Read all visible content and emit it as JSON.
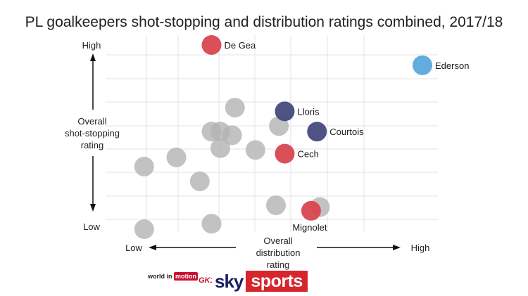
{
  "title": "PL goalkeepers shot-stopping and distribution ratings combined, 2017/18",
  "colors": {
    "grey": "#b3b3b3",
    "red": "#d9474f",
    "navy": "#464a7c",
    "light_blue": "#5ba8dc",
    "grid": "#e3e3e3"
  },
  "axes": {
    "y_high": "High",
    "y_low": "Low",
    "y_label_lines": [
      "Overall",
      "shot-stopping",
      "rating"
    ],
    "x_low": "Low",
    "x_high": "High",
    "x_label_lines": [
      "Overall",
      "distribution",
      "rating"
    ]
  },
  "chart_data": {
    "type": "scatter",
    "title": "PL goalkeepers shot-stopping and distribution ratings combined, 2017/18",
    "xlabel": "Overall distribution rating",
    "ylabel": "Overall shot-stopping rating",
    "xlim": [
      0,
      10
    ],
    "ylim": [
      0,
      10
    ],
    "grid": true,
    "points": [
      {
        "label": "De Gea",
        "x": 2.8,
        "y": 10.0,
        "color": "red"
      },
      {
        "label": "Ederson",
        "x": 10.0,
        "y": 8.9,
        "color": "light_blue"
      },
      {
        "label": "Lloris",
        "x": 5.3,
        "y": 6.4,
        "color": "navy"
      },
      {
        "label": "Courtois",
        "x": 6.4,
        "y": 5.3,
        "color": "navy"
      },
      {
        "label": "Cech",
        "x": 5.3,
        "y": 4.1,
        "color": "red"
      },
      {
        "label": "Mignolet",
        "x": 6.2,
        "y": 1.0,
        "color": "red"
      },
      {
        "label": "",
        "x": 3.6,
        "y": 6.6,
        "color": "grey"
      },
      {
        "label": "",
        "x": 5.1,
        "y": 5.6,
        "color": "grey"
      },
      {
        "label": "",
        "x": 2.8,
        "y": 5.3,
        "color": "grey"
      },
      {
        "label": "",
        "x": 3.1,
        "y": 5.3,
        "color": "grey"
      },
      {
        "label": "",
        "x": 3.5,
        "y": 5.1,
        "color": "grey"
      },
      {
        "label": "",
        "x": 3.1,
        "y": 4.4,
        "color": "grey"
      },
      {
        "label": "",
        "x": 4.3,
        "y": 4.3,
        "color": "grey"
      },
      {
        "label": "",
        "x": 1.6,
        "y": 3.9,
        "color": "grey"
      },
      {
        "label": "",
        "x": 0.5,
        "y": 3.4,
        "color": "grey"
      },
      {
        "label": "",
        "x": 2.4,
        "y": 2.6,
        "color": "grey"
      },
      {
        "label": "",
        "x": 5.0,
        "y": 1.3,
        "color": "grey"
      },
      {
        "label": "",
        "x": 6.5,
        "y": 1.2,
        "color": "grey"
      },
      {
        "label": "",
        "x": 2.8,
        "y": 0.3,
        "color": "grey"
      },
      {
        "label": "",
        "x": 0.5,
        "y": 0.0,
        "color": "grey"
      }
    ]
  },
  "logos": {
    "wim_part1": "world in",
    "wim_part2": "motion",
    "gk": "GK1",
    "sky": "sky",
    "sports": "sports"
  }
}
